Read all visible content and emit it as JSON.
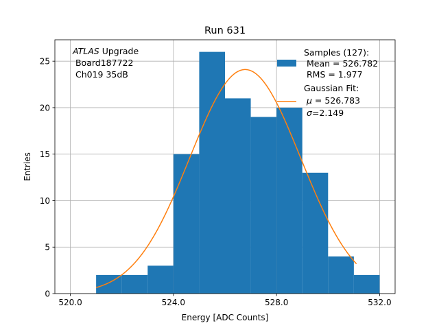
{
  "chart_data": {
    "type": "bar",
    "title": "Run 631",
    "xlabel": "Energy [ADC Counts]",
    "ylabel": "Entries",
    "xlim": [
      519.4,
      532.6
    ],
    "ylim": [
      0,
      27.3
    ],
    "grid": true,
    "x_ticks": [
      "520.0",
      "524.0",
      "528.0",
      "532.0"
    ],
    "x_tick_values": [
      520,
      524,
      528,
      532
    ],
    "y_ticks": [
      "0",
      "5",
      "10",
      "15",
      "20",
      "25"
    ],
    "y_tick_values": [
      0,
      5,
      10,
      15,
      20,
      25
    ],
    "bin_edges": [
      521,
      522,
      523,
      524,
      525,
      526,
      527,
      528,
      529,
      530,
      531,
      532
    ],
    "counts": [
      2,
      2,
      3,
      15,
      26,
      21,
      19,
      20,
      13,
      4,
      2
    ],
    "bar_color": "#1f77b4",
    "fit": {
      "mu": 526.783,
      "sigma": 2.149,
      "x_range": [
        521,
        531.1
      ],
      "peak": 24.1,
      "color": "#ff7f0e"
    },
    "annotation": {
      "italic": "ATLAS",
      "line1_rest": " Upgrade",
      "line2": " Board187722",
      "line3": " Ch019 35dB"
    },
    "legend": {
      "placement": "top-right",
      "samples_line1": "Samples (127):",
      "samples_line2": " Mean = 526.782",
      "samples_line3": " RMS = 1.977",
      "fit_line1": "Gaussian Fit:",
      "fit_mu_symbol": "μ",
      "fit_mu_rest": " = 526.783",
      "fit_sigma_symbol": "σ",
      "fit_sigma_rest": "=2.149"
    }
  }
}
